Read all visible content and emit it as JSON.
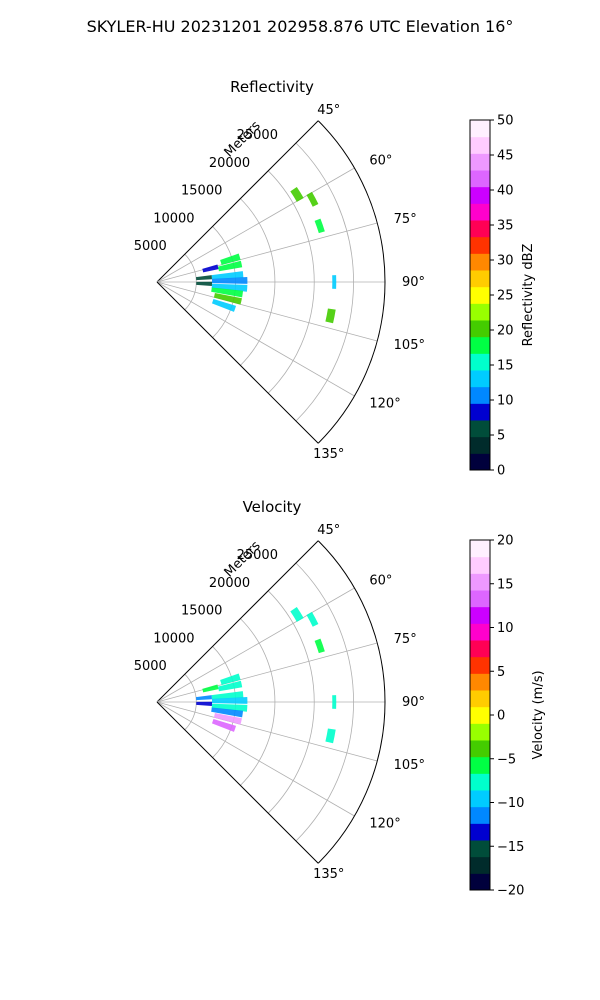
{
  "figure": {
    "title": "SKYLER-HU  20231201  202958.876 UTC Elevation 16°"
  },
  "chart_data": [
    {
      "type": "heatmap",
      "title": "Reflectivity",
      "projection": "polar-sector",
      "theta_range_deg": [
        45,
        135
      ],
      "theta_ticks": [
        "45°",
        "60°",
        "75°",
        "90°",
        "105°",
        "120°",
        "135°"
      ],
      "theta_tick_values": [
        45,
        60,
        75,
        90,
        105,
        120,
        135
      ],
      "r_max": 29000,
      "r_ticks": [
        "5000",
        "10000",
        "15000",
        "20000",
        "25000"
      ],
      "r_tick_values": [
        5000,
        10000,
        15000,
        20000,
        25000
      ],
      "rlabel": "Meters",
      "colorbar": {
        "label": "Reflectivity dBZ",
        "range": [
          0,
          50
        ],
        "ticks": [
          "0",
          "5",
          "10",
          "15",
          "20",
          "25",
          "30",
          "35",
          "40",
          "45",
          "50"
        ],
        "tick_values": [
          0,
          5,
          10,
          15,
          20,
          25,
          30,
          35,
          40,
          45,
          50
        ],
        "colors": [
          "#00003c",
          "#002b2b",
          "#004d3a",
          "#0000d0",
          "#0088ff",
          "#00ccff",
          "#00ffcc",
          "#00ff44",
          "#44cc00",
          "#99ff00",
          "#ffff00",
          "#ffcc00",
          "#ff8800",
          "#ff3300",
          "#ff0055",
          "#ff00cc",
          "#cc00ff",
          "#dd66ff",
          "#ee99ff",
          "#ffccff",
          "#fff0ff"
        ]
      },
      "echoes": [
        {
          "theta": 85,
          "r_min": 7000,
          "r_max": 11000,
          "value": 13
        },
        {
          "theta": 89,
          "r_min": 7000,
          "r_max": 11500,
          "value": 11
        },
        {
          "theta": 94,
          "r_min": 7000,
          "r_max": 11500,
          "value": 13
        },
        {
          "theta": 98,
          "r_min": 7000,
          "r_max": 11000,
          "value": 17
        },
        {
          "theta": 78,
          "r_min": 8000,
          "r_max": 11000,
          "value": 17
        },
        {
          "theta": 103,
          "r_min": 7500,
          "r_max": 11000,
          "value": 20
        },
        {
          "theta": 73,
          "r_min": 8500,
          "r_max": 11000,
          "value": 18
        },
        {
          "theta": 109,
          "r_min": 7500,
          "r_max": 10500,
          "value": 12
        },
        {
          "theta": 85,
          "r_min": 5000,
          "r_max": 7000,
          "value": 6
        },
        {
          "theta": 92,
          "r_min": 5000,
          "r_max": 7000,
          "value": 7
        },
        {
          "theta": 76,
          "r_min": 6000,
          "r_max": 8000,
          "value": 9
        },
        {
          "theta": 58,
          "r_min": 20500,
          "r_max": 21500,
          "value": 20
        },
        {
          "theta": 62,
          "r_min": 22000,
          "r_max": 22800,
          "value": 20
        },
        {
          "theta": 71,
          "r_min": 21500,
          "r_max": 22300,
          "value": 18
        },
        {
          "theta": 90,
          "r_min": 22300,
          "r_max": 22800,
          "value": 14
        },
        {
          "theta": 101,
          "r_min": 22000,
          "r_max": 23000,
          "value": 21
        }
      ]
    },
    {
      "type": "heatmap",
      "title": "Velocity",
      "projection": "polar-sector",
      "theta_range_deg": [
        45,
        135
      ],
      "theta_ticks": [
        "45°",
        "60°",
        "75°",
        "90°",
        "105°",
        "120°",
        "135°"
      ],
      "theta_tick_values": [
        45,
        60,
        75,
        90,
        105,
        120,
        135
      ],
      "r_max": 29000,
      "r_ticks": [
        "5000",
        "10000",
        "15000",
        "20000",
        "25000"
      ],
      "r_tick_values": [
        5000,
        10000,
        15000,
        20000,
        25000
      ],
      "rlabel": "Meters",
      "colorbar": {
        "label": "Velocity (m/s)",
        "range": [
          -20,
          20
        ],
        "ticks": [
          "−20",
          "−15",
          "−10",
          "−5",
          "0",
          "5",
          "10",
          "15",
          "20"
        ],
        "tick_values": [
          -20,
          -15,
          -10,
          -5,
          0,
          5,
          10,
          15,
          20
        ],
        "colors": [
          "#00003c",
          "#002b2b",
          "#004d3a",
          "#0000d0",
          "#0088ff",
          "#00ccff",
          "#00ffcc",
          "#00ff44",
          "#44cc00",
          "#99ff00",
          "#ffff00",
          "#ffcc00",
          "#ff8800",
          "#ff3300",
          "#ff0055",
          "#ff00cc",
          "#cc00ff",
          "#dd66ff",
          "#ee99ff",
          "#ffccff",
          "#fff0ff"
        ]
      },
      "echoes": [
        {
          "theta": 85,
          "r_min": 7000,
          "r_max": 11000,
          "value": -8
        },
        {
          "theta": 89,
          "r_min": 7000,
          "r_max": 11500,
          "value": -9
        },
        {
          "theta": 94,
          "r_min": 7000,
          "r_max": 11500,
          "value": -8
        },
        {
          "theta": 98,
          "r_min": 7000,
          "r_max": 11000,
          "value": -11
        },
        {
          "theta": 78,
          "r_min": 8000,
          "r_max": 11000,
          "value": -8
        },
        {
          "theta": 103,
          "r_min": 7500,
          "r_max": 11000,
          "value": 15
        },
        {
          "theta": 73,
          "r_min": 8500,
          "r_max": 11000,
          "value": -7
        },
        {
          "theta": 109,
          "r_min": 7500,
          "r_max": 10500,
          "value": 14
        },
        {
          "theta": 85,
          "r_min": 5000,
          "r_max": 7000,
          "value": -12
        },
        {
          "theta": 92,
          "r_min": 5000,
          "r_max": 7000,
          "value": -13
        },
        {
          "theta": 76,
          "r_min": 6000,
          "r_max": 8000,
          "value": -6
        },
        {
          "theta": 58,
          "r_min": 20500,
          "r_max": 21500,
          "value": -7
        },
        {
          "theta": 62,
          "r_min": 22000,
          "r_max": 22800,
          "value": -7
        },
        {
          "theta": 71,
          "r_min": 21500,
          "r_max": 22300,
          "value": -6
        },
        {
          "theta": 90,
          "r_min": 22300,
          "r_max": 22800,
          "value": -8
        },
        {
          "theta": 101,
          "r_min": 22000,
          "r_max": 23000,
          "value": -7
        }
      ]
    }
  ]
}
